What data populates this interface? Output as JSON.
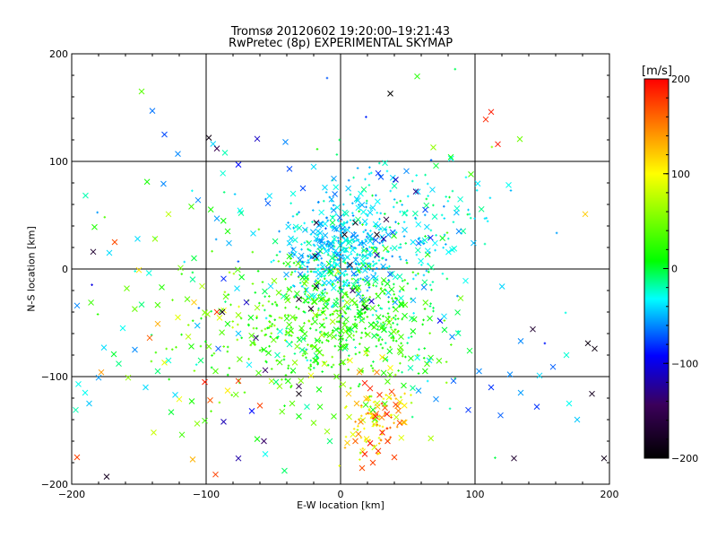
{
  "title_line1": "Tromsø 20120602 19:20:00–19:21:43",
  "title_line2": "RwPretec (8p) EXPERIMENTAL SKYMAP",
  "chart_data": {
    "type": "scatter",
    "title": "Tromsø 20120602 19:20:00–19:21:43",
    "subtitle": "RwPretec (8p) EXPERIMENTAL SKYMAP",
    "xlabel": "E-W location [km]",
    "ylabel": "N-S location [km]",
    "xlim": [
      -200,
      200
    ],
    "ylim": [
      -200,
      200
    ],
    "xticks": [
      -200,
      -100,
      0,
      100,
      200
    ],
    "yticks": [
      -200,
      -100,
      0,
      100,
      200
    ],
    "grid": true,
    "colorbar": {
      "label": "[m/s]",
      "range": [
        -200,
        200
      ],
      "ticks": [
        -200,
        -100,
        0,
        100,
        200
      ],
      "colormap": "rainbow (black-purple-blue-cyan-green-yellow-red)",
      "stops": [
        "#000000",
        "#3b005a",
        "#0000ff",
        "#00ffff",
        "#00ff00",
        "#ffff00",
        "#ff0000"
      ]
    },
    "points": [
      [
        -120,
        -121,
        95
      ],
      [
        -128,
        -85,
        -26
      ],
      [
        -87,
        -9,
        -84
      ],
      [
        -109,
        10,
        -2
      ],
      [
        -131,
        -87,
        91
      ],
      [
        -136,
        -51,
        132
      ],
      [
        -159,
        -18,
        45
      ],
      [
        -153,
        -75,
        -59
      ],
      [
        -91,
        -74,
        -71
      ],
      [
        -98,
        -72,
        48
      ],
      [
        -84,
        -113,
        107
      ],
      [
        -104,
        -85,
        -9
      ],
      [
        -111,
        -72,
        18
      ],
      [
        -93,
        -95,
        35
      ],
      [
        -76,
        -60,
        -45
      ],
      [
        -142,
        -64,
        163
      ],
      [
        -165,
        -88,
        -12
      ],
      [
        -178,
        -96,
        140
      ],
      [
        -190,
        -115,
        -30
      ],
      [
        -196,
        -175,
        175
      ],
      [
        -180,
        -101,
        -55
      ],
      [
        -174,
        -193,
        -180
      ],
      [
        -184,
        16,
        -170
      ],
      [
        -168,
        25,
        170
      ],
      [
        -151,
        28,
        -40
      ],
      [
        -140,
        147,
        -65
      ],
      [
        -131,
        125,
        -75
      ],
      [
        -148,
        165,
        40
      ],
      [
        -121,
        107,
        -60
      ],
      [
        -106,
        64,
        -60
      ],
      [
        -98,
        122,
        -190
      ],
      [
        -92,
        112,
        -150
      ],
      [
        -86,
        108,
        -20
      ],
      [
        -76,
        97,
        -90
      ],
      [
        -62,
        121,
        -110
      ],
      [
        -41,
        118,
        -60
      ],
      [
        -20,
        95,
        -40
      ],
      [
        -38,
        93,
        -75
      ],
      [
        -8,
        -160,
        -10
      ],
      [
        -111,
        58,
        30
      ],
      [
        -121,
        -45,
        90
      ],
      [
        -109,
        -31,
        120
      ],
      [
        -92,
        -40,
        180
      ],
      [
        -88,
        -40,
        -180
      ],
      [
        -70,
        -31,
        -110
      ],
      [
        -63,
        -64,
        -135
      ],
      [
        -56,
        -94,
        -140
      ],
      [
        -47,
        -80,
        -20
      ],
      [
        -31,
        -109,
        -155
      ],
      [
        -31,
        -116,
        -190
      ],
      [
        -25,
        -128,
        -20
      ],
      [
        -31,
        -137,
        10
      ],
      [
        -56,
        -172,
        -30
      ],
      [
        -57,
        -160,
        -140
      ],
      [
        -76,
        -176,
        -120
      ],
      [
        -87,
        -142,
        -115
      ],
      [
        -66,
        -132,
        -90
      ],
      [
        -62,
        -158,
        10
      ],
      [
        -93,
        -191,
        175
      ],
      [
        -110,
        -177,
        130
      ],
      [
        -97,
        -122,
        165
      ],
      [
        -76,
        -104,
        180
      ],
      [
        -60,
        -127,
        175
      ],
      [
        -101,
        -105,
        190
      ],
      [
        -123,
        -117,
        -40
      ],
      [
        37,
        163,
        -200
      ],
      [
        57,
        179,
        20
      ],
      [
        41,
        83,
        -110
      ],
      [
        56,
        72,
        -130
      ],
      [
        63,
        55,
        -75
      ],
      [
        74,
        -48,
        -95
      ],
      [
        83,
        -63,
        -60
      ],
      [
        77,
        -44,
        -40
      ],
      [
        96,
        -76,
        0
      ],
      [
        97,
        88,
        30
      ],
      [
        112,
        146,
        190
      ],
      [
        108,
        139,
        185
      ],
      [
        117,
        116,
        190
      ],
      [
        125,
        78,
        -30
      ],
      [
        134,
        -115,
        -55
      ],
      [
        129,
        -176,
        -170
      ],
      [
        143,
        -56,
        -170
      ],
      [
        148,
        -99,
        -40
      ],
      [
        168,
        -80,
        -25
      ],
      [
        182,
        51,
        120
      ],
      [
        184,
        -69,
        -190
      ],
      [
        189,
        -74,
        -190
      ],
      [
        187,
        -116,
        -180
      ],
      [
        196,
        -176,
        -185
      ],
      [
        3,
        32,
        -190
      ],
      [
        11,
        43,
        -185
      ],
      [
        27,
        32,
        -190
      ],
      [
        34,
        46,
        -160
      ],
      [
        -19,
        12,
        -170
      ],
      [
        -22,
        -37,
        -175
      ],
      [
        -31,
        -28,
        -180
      ],
      [
        -18,
        -16,
        -185
      ],
      [
        7,
        4,
        -175
      ],
      [
        18,
        -36,
        -165
      ],
      [
        23,
        -30,
        -110
      ],
      [
        27,
        13,
        -120
      ],
      [
        9,
        -20,
        -140
      ],
      [
        32,
        28,
        -120
      ],
      [
        -18,
        43,
        -160
      ],
      [
        18,
        -106,
        190
      ],
      [
        22,
        -111,
        185
      ],
      [
        29,
        -117,
        180
      ],
      [
        33,
        -129,
        170
      ],
      [
        38,
        -114,
        175
      ],
      [
        26,
        -137,
        190
      ],
      [
        12,
        -125,
        130
      ],
      [
        6,
        -116,
        120
      ],
      [
        15,
        -142,
        150
      ],
      [
        41,
        -126,
        175
      ],
      [
        22,
        -162,
        195
      ],
      [
        18,
        -172,
        190
      ],
      [
        28,
        -169,
        185
      ],
      [
        35,
        -160,
        180
      ],
      [
        24,
        -180,
        175
      ],
      [
        16,
        -185,
        170
      ],
      [
        31,
        -152,
        190
      ],
      [
        40,
        -175,
        175
      ],
      [
        11,
        -160,
        160
      ],
      [
        44,
        -143,
        170
      ],
      [
        -26,
        -8,
        -5
      ],
      [
        -12,
        -13,
        -40
      ],
      [
        -7,
        20,
        -55
      ],
      [
        -14,
        26,
        -60
      ],
      [
        -3,
        37,
        -50
      ],
      [
        13,
        46,
        -10
      ],
      [
        17,
        53,
        -30
      ],
      [
        24,
        57,
        -40
      ],
      [
        -6,
        43,
        -5
      ],
      [
        6,
        24,
        -20
      ],
      [
        -19,
        -49,
        20
      ],
      [
        -11,
        -35,
        10
      ],
      [
        -5,
        -63,
        40
      ],
      [
        2,
        -72,
        30
      ],
      [
        6,
        -57,
        5
      ],
      [
        -29,
        -55,
        30
      ],
      [
        -40,
        -46,
        20
      ],
      [
        -46,
        -22,
        45
      ],
      [
        -52,
        -16,
        -40
      ],
      [
        -62,
        -36,
        60
      ],
      [
        44,
        -7,
        -20
      ],
      [
        38,
        -19,
        10
      ],
      [
        54,
        -29,
        -50
      ],
      [
        62,
        -17,
        -60
      ],
      [
        58,
        24,
        -70
      ],
      [
        49,
        91,
        -60
      ],
      [
        28,
        89,
        -80
      ],
      [
        15,
        70,
        -30
      ],
      [
        -5,
        84,
        -55
      ],
      [
        -28,
        75,
        -75
      ],
      [
        71,
        96,
        0
      ],
      [
        82,
        104,
        10
      ],
      [
        69,
        113,
        60
      ],
      [
        88,
        35,
        -60
      ],
      [
        93,
        -11,
        -30
      ],
      [
        -65,
        33,
        -40
      ],
      [
        -74,
        52,
        -15
      ],
      [
        -92,
        47,
        -55
      ],
      [
        -83,
        24,
        -50
      ],
      [
        -54,
        61,
        -70
      ],
      [
        -103,
        -16,
        70
      ],
      [
        -114,
        -28,
        40
      ],
      [
        -99,
        -42,
        60
      ],
      [
        -84,
        -51,
        10
      ],
      [
        -77,
        -18,
        -40
      ],
      [
        7,
        -85,
        95
      ],
      [
        19,
        -78,
        80
      ],
      [
        31,
        -82,
        110
      ],
      [
        14,
        -96,
        140
      ],
      [
        27,
        -96,
        150
      ],
      [
        -12,
        -88,
        80
      ],
      [
        -22,
        -99,
        95
      ],
      [
        -3,
        -100,
        40
      ],
      [
        37,
        -92,
        100
      ],
      [
        -34,
        -87,
        60
      ],
      [
        52,
        -92,
        -20
      ],
      [
        66,
        -85,
        -40
      ],
      [
        58,
        -113,
        -55
      ],
      [
        71,
        -121,
        -60
      ],
      [
        84,
        -104,
        -70
      ],
      [
        103,
        -95,
        -60
      ],
      [
        112,
        -110,
        -80
      ],
      [
        95,
        -131,
        -80
      ],
      [
        119,
        -136,
        -70
      ],
      [
        126,
        -98,
        -60
      ],
      [
        134,
        -67,
        -60
      ],
      [
        146,
        -128,
        -80
      ],
      [
        158,
        -91,
        -70
      ],
      [
        170,
        -125,
        -30
      ],
      [
        176,
        -140,
        -45
      ],
      [
        -136,
        -95,
        -10
      ],
      [
        -145,
        -110,
        -40
      ],
      [
        -126,
        -133,
        0
      ],
      [
        -158,
        -101,
        60
      ],
      [
        -187,
        -125,
        -45
      ],
      [
        -195,
        -107,
        -30
      ],
      [
        -197,
        -131,
        -20
      ],
      [
        -118,
        -154,
        30
      ],
      [
        -139,
        -152,
        80
      ],
      [
        -101,
        -141,
        30
      ],
      [
        -45,
        -58,
        -30
      ],
      [
        -57,
        -75,
        15
      ],
      [
        -38,
        -70,
        -20
      ],
      [
        -48,
        -105,
        -10
      ],
      [
        -68,
        -89,
        -35
      ],
      [
        -36,
        -125,
        40
      ],
      [
        -16,
        -112,
        10
      ],
      [
        -5,
        -137,
        30
      ],
      [
        -20,
        -143,
        50
      ],
      [
        -10,
        -151,
        60
      ],
      [
        53,
        -46,
        -10
      ],
      [
        45,
        -63,
        30
      ],
      [
        36,
        -50,
        45
      ],
      [
        25,
        -54,
        30
      ],
      [
        45,
        -32,
        20
      ],
      [
        -128,
        51,
        75
      ],
      [
        -138,
        28,
        60
      ],
      [
        -150,
        -1,
        110
      ],
      [
        -172,
        15,
        -40
      ],
      [
        -196,
        -34,
        -60
      ],
      [
        -176,
        -73,
        -40
      ],
      [
        -162,
        -55,
        -30
      ],
      [
        -148,
        -33,
        -10
      ],
      [
        -133,
        -17,
        20
      ],
      [
        -119,
        1,
        50
      ]
    ],
    "background_points": 1400
  }
}
